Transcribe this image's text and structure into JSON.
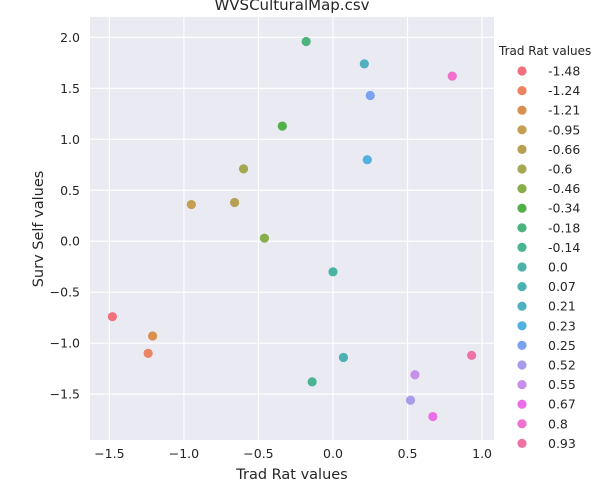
{
  "chart_data": {
    "type": "scatter",
    "title": "WVSCulturalMap.csv",
    "xlabel": "Trad Rat values",
    "ylabel": "Surv Self values",
    "xlim": [
      -1.63,
      1.08
    ],
    "ylim": [
      -1.95,
      2.2
    ],
    "xticks": [
      -1.5,
      -1.0,
      -0.5,
      0.0,
      0.5,
      1.0
    ],
    "xtick_labels": [
      "−1.5",
      "−1.0",
      "−0.5",
      "0.0",
      "0.5",
      "1.0"
    ],
    "yticks": [
      2.0,
      1.5,
      1.0,
      0.5,
      0.0,
      -0.5,
      -1.0,
      -1.5
    ],
    "ytick_labels": [
      "2.0",
      "1.5",
      "1.0",
      "0.5",
      "0.0",
      "−0.5",
      "−1.0",
      "−1.5"
    ],
    "grid": true,
    "background": "#eaeaf2",
    "legend": {
      "title": "Trad Rat values",
      "placement": "outside-right"
    },
    "points": [
      {
        "label": "-1.48",
        "x": -1.48,
        "y": -0.74,
        "color": "#f0707e"
      },
      {
        "label": "-1.24",
        "x": -1.24,
        "y": -1.1,
        "color": "#ec8463"
      },
      {
        "label": "-1.21",
        "x": -1.21,
        "y": -0.93,
        "color": "#d98f4d"
      },
      {
        "label": "-0.95",
        "x": -0.95,
        "y": 0.36,
        "color": "#c59e51"
      },
      {
        "label": "-0.66",
        "x": -0.66,
        "y": 0.38,
        "color": "#b79f53"
      },
      {
        "label": "-0.6",
        "x": -0.6,
        "y": 0.71,
        "color": "#a5a84e"
      },
      {
        "label": "-0.46",
        "x": -0.46,
        "y": 0.03,
        "color": "#88ad4a"
      },
      {
        "label": "-0.34",
        "x": -0.34,
        "y": 1.13,
        "color": "#52b049"
      },
      {
        "label": "-0.18",
        "x": -0.18,
        "y": 1.96,
        "color": "#4cb37e"
      },
      {
        "label": "-0.14",
        "x": -0.14,
        "y": -1.38,
        "color": "#48b492"
      },
      {
        "label": "0.0",
        "x": 0.0,
        "y": -0.3,
        "color": "#4ab3a5"
      },
      {
        "label": "0.07",
        "x": 0.07,
        "y": -1.14,
        "color": "#4bb1b2"
      },
      {
        "label": "0.21",
        "x": 0.21,
        "y": 1.74,
        "color": "#4fb0c1"
      },
      {
        "label": "0.23",
        "x": 0.23,
        "y": 0.8,
        "color": "#52b1e0"
      },
      {
        "label": "0.25",
        "x": 0.25,
        "y": 1.43,
        "color": "#7ba2ef"
      },
      {
        "label": "0.52",
        "x": 0.52,
        "y": -1.56,
        "color": "#a89bea"
      },
      {
        "label": "0.55",
        "x": 0.55,
        "y": -1.31,
        "color": "#c78eea"
      },
      {
        "label": "0.67",
        "x": 0.67,
        "y": -1.72,
        "color": "#ea6ee8"
      },
      {
        "label": "0.8",
        "x": 0.8,
        "y": 1.62,
        "color": "#f170cd"
      },
      {
        "label": "0.93",
        "x": 0.93,
        "y": -1.12,
        "color": "#ef72a7"
      }
    ]
  }
}
